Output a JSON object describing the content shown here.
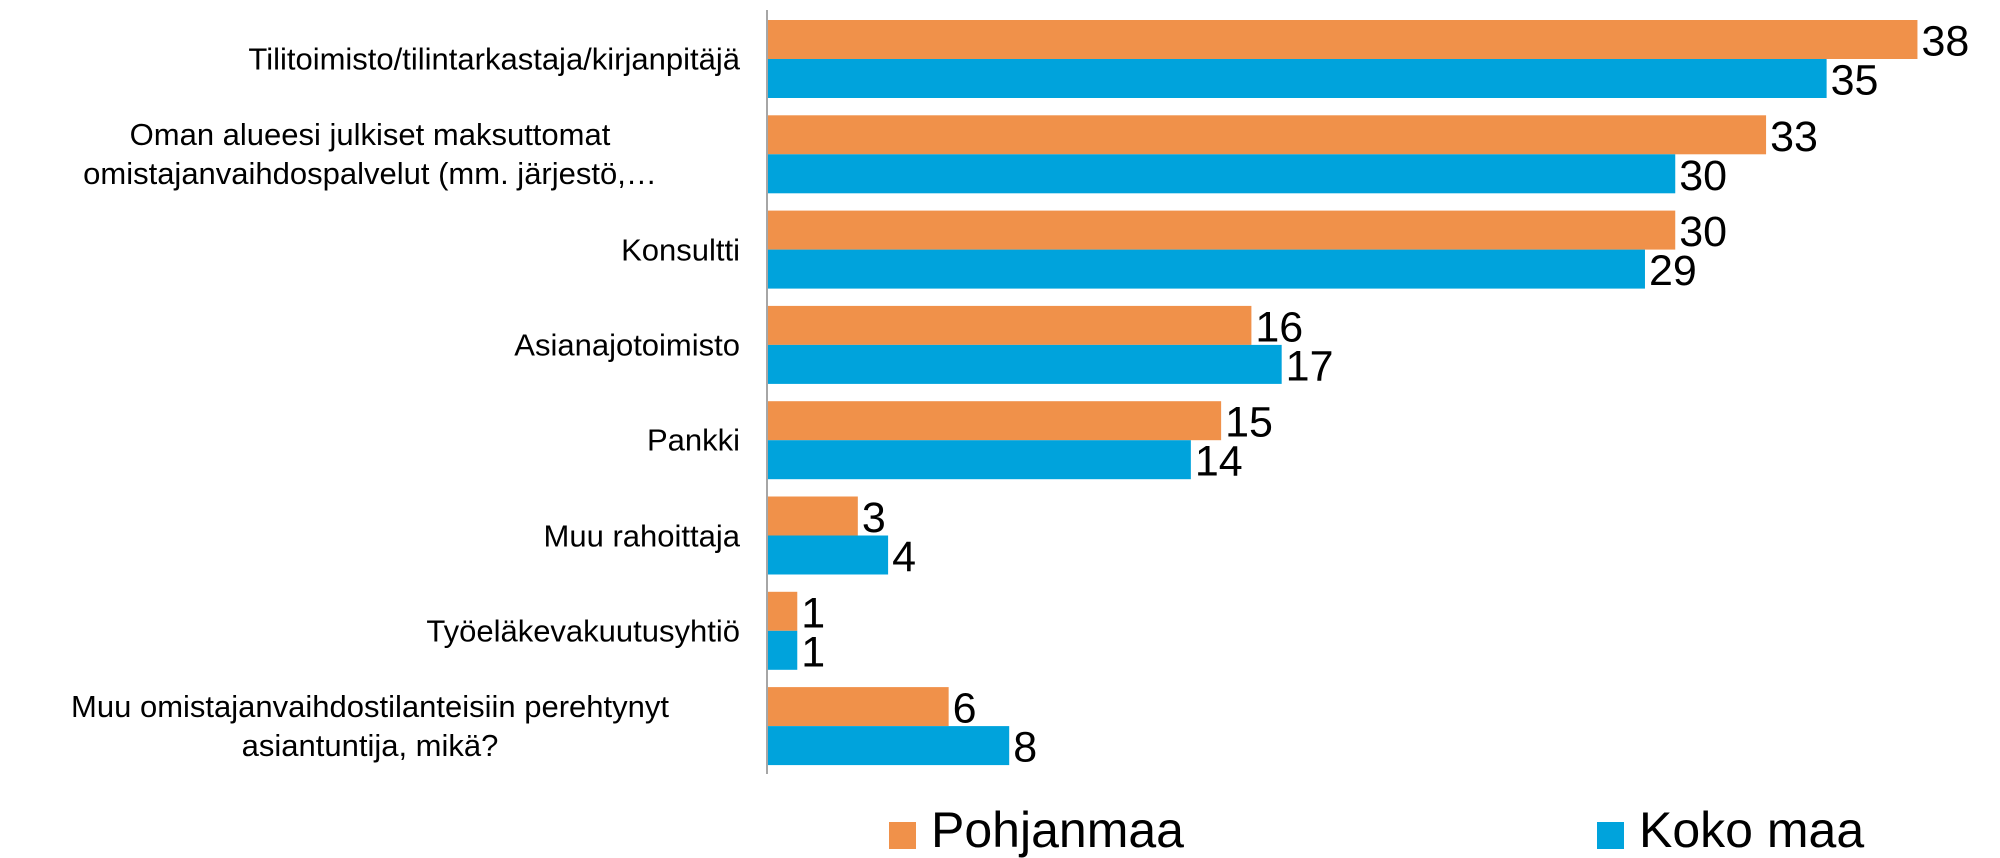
{
  "chart_data": {
    "type": "bar",
    "orientation": "horizontal",
    "categories": [
      "Tilitoimisto/tilintarkastaja/kirjanpitäjä",
      "Oman alueesi julkiset maksuttomat omistajanvaihdospalvelut (mm. järjestö,…",
      "Konsultti",
      "Asianajotoimisto",
      "Pankki",
      "Muu rahoittaja",
      "Työeläkevakuutusyhtiö",
      "Muu omistajanvaihdostilanteisiin perehtynyt asiantuntija, mikä?"
    ],
    "series": [
      {
        "name": "Pohjanmaa",
        "color": "#f0914a",
        "values": [
          38,
          33,
          30,
          16,
          15,
          3,
          1,
          6
        ]
      },
      {
        "name": "Koko maa",
        "color": "#00a3dc",
        "values": [
          35,
          30,
          29,
          17,
          14,
          4,
          1,
          8
        ]
      }
    ],
    "xlim": [
      0,
      40
    ],
    "legend": "bottom"
  }
}
